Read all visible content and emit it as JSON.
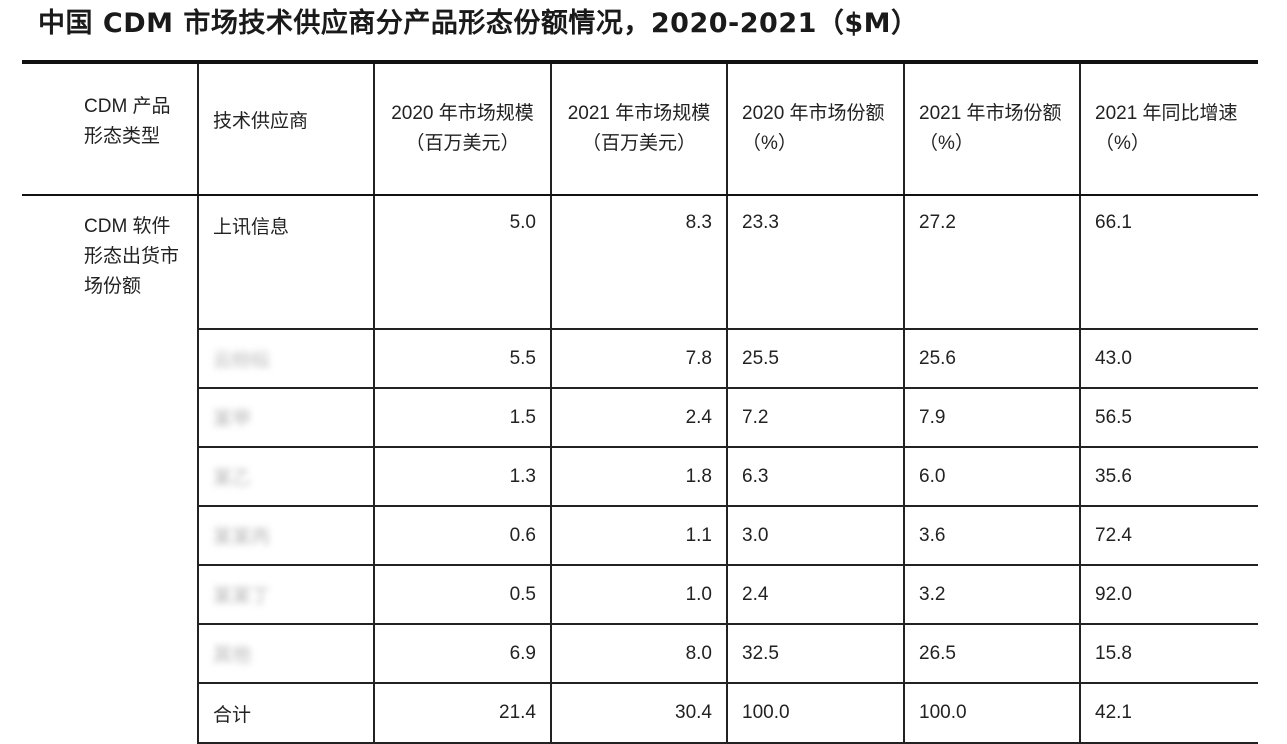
{
  "title": "中国 CDM 市场技术供应商分产品形态份额情况，2020-2021（$M）",
  "table": {
    "headers": [
      "CDM 产品形态类型",
      "技术供应商",
      "2020 年市场规模（百万美元）",
      "2021 年市场规模（百万美元）",
      "2020 年市场份额（%）",
      "2021 年市场份额（%）",
      "2021 年同比增速（%）"
    ],
    "product_type": "CDM 软件形态出货市场份额",
    "rows": [
      {
        "vendor": "上讯信息",
        "size_2020": "5.0",
        "size_2021": "8.3",
        "share_2020": "23.3",
        "share_2021": "27.2",
        "growth_2021": "66.1",
        "vendor_obscured": false
      },
      {
        "vendor": "云纷纭",
        "size_2020": "5.5",
        "size_2021": "7.8",
        "share_2020": "25.5",
        "share_2021": "25.6",
        "growth_2021": "43.0",
        "vendor_obscured": true
      },
      {
        "vendor": "某甲",
        "size_2020": "1.5",
        "size_2021": "2.4",
        "share_2020": "7.2",
        "share_2021": "7.9",
        "growth_2021": "56.5",
        "vendor_obscured": true
      },
      {
        "vendor": "某乙",
        "size_2020": "1.3",
        "size_2021": "1.8",
        "share_2020": "6.3",
        "share_2021": "6.0",
        "growth_2021": "35.6",
        "vendor_obscured": true
      },
      {
        "vendor": "某某丙",
        "size_2020": "0.6",
        "size_2021": "1.1",
        "share_2020": "3.0",
        "share_2021": "3.6",
        "growth_2021": "72.4",
        "vendor_obscured": true
      },
      {
        "vendor": "某某丁",
        "size_2020": "0.5",
        "size_2021": "1.0",
        "share_2020": "2.4",
        "share_2021": "3.2",
        "growth_2021": "92.0",
        "vendor_obscured": true
      },
      {
        "vendor": "其他",
        "size_2020": "6.9",
        "size_2021": "8.0",
        "share_2020": "32.5",
        "share_2021": "26.5",
        "growth_2021": "15.8",
        "vendor_obscured": true
      },
      {
        "vendor": "合计",
        "size_2020": "21.4",
        "size_2021": "30.4",
        "share_2020": "100.0",
        "share_2021": "100.0",
        "growth_2021": "42.1",
        "vendor_obscured": false
      }
    ]
  }
}
